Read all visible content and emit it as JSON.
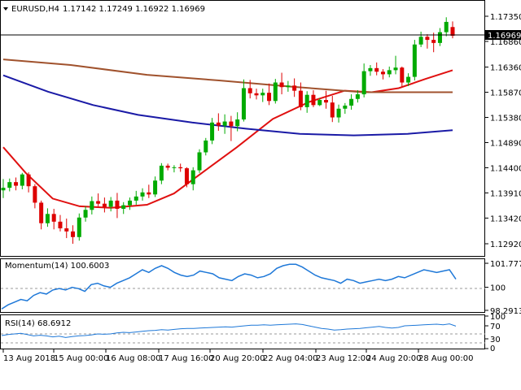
{
  "header": {
    "symbol_label": "EURUSD,H4",
    "ohlc": "1.17142 1.17249 1.16922 1.16969"
  },
  "current_price": "1.16969",
  "price_axis": [
    "1.17350",
    "1.16860",
    "1.16360",
    "1.15870",
    "1.15380",
    "1.14890",
    "1.14400",
    "1.13910",
    "1.13420",
    "1.12920"
  ],
  "momentum_panel": {
    "label": "Momentum(14) 100.6003",
    "axis": [
      "101.7776",
      "100",
      "98.2913"
    ]
  },
  "rsi_panel": {
    "label": "RSI(14) 68.6912",
    "axis": [
      "100",
      "70",
      "30",
      "0"
    ]
  },
  "time_axis": [
    "13 Aug 2018",
    "15 Aug 00:00",
    "16 Aug 08:00",
    "17 Aug 16:00",
    "20 Aug 20:00",
    "22 Aug 04:00",
    "23 Aug 12:00",
    "24 Aug 20:00",
    "28 Aug 00:00"
  ],
  "colors": {
    "bull": "#00aa00",
    "bear": "#dd0000",
    "sma_fast": "#e01010",
    "sma_mid": "#a0522d",
    "sma_slow": "#1a1aa6",
    "oscillator": "#1e78d8",
    "background": "#ffffff",
    "text": "#000000"
  },
  "chart_data": [
    {
      "type": "candlestick",
      "title": "EURUSD,H4",
      "ylim": [
        1.1292,
        1.1735
      ],
      "candles": [
        {
          "o": 1.1396,
          "h": 1.1418,
          "l": 1.1381,
          "c": 1.1401
        },
        {
          "o": 1.1401,
          "h": 1.1419,
          "l": 1.1394,
          "c": 1.1412
        },
        {
          "o": 1.1412,
          "h": 1.1421,
          "l": 1.1396,
          "c": 1.1405
        },
        {
          "o": 1.1405,
          "h": 1.143,
          "l": 1.1398,
          "c": 1.1427
        },
        {
          "o": 1.1427,
          "h": 1.1431,
          "l": 1.1392,
          "c": 1.1404
        },
        {
          "o": 1.1404,
          "h": 1.1408,
          "l": 1.1361,
          "c": 1.1372
        },
        {
          "o": 1.1372,
          "h": 1.1376,
          "l": 1.132,
          "c": 1.1332
        },
        {
          "o": 1.1332,
          "h": 1.1361,
          "l": 1.1325,
          "c": 1.135
        },
        {
          "o": 1.135,
          "h": 1.136,
          "l": 1.132,
          "c": 1.1335
        },
        {
          "o": 1.1335,
          "h": 1.1348,
          "l": 1.1316,
          "c": 1.1322
        },
        {
          "o": 1.1322,
          "h": 1.1341,
          "l": 1.1303,
          "c": 1.1316
        },
        {
          "o": 1.1316,
          "h": 1.1328,
          "l": 1.1292,
          "c": 1.1305
        },
        {
          "o": 1.1305,
          "h": 1.1351,
          "l": 1.1298,
          "c": 1.1343
        },
        {
          "o": 1.1343,
          "h": 1.1365,
          "l": 1.1335,
          "c": 1.1358
        },
        {
          "o": 1.1358,
          "h": 1.1384,
          "l": 1.1349,
          "c": 1.1375
        },
        {
          "o": 1.1375,
          "h": 1.139,
          "l": 1.1365,
          "c": 1.137
        },
        {
          "o": 1.137,
          "h": 1.1382,
          "l": 1.1353,
          "c": 1.1364
        },
        {
          "o": 1.1364,
          "h": 1.1383,
          "l": 1.1355,
          "c": 1.1376
        },
        {
          "o": 1.1376,
          "h": 1.1391,
          "l": 1.1342,
          "c": 1.136
        },
        {
          "o": 1.136,
          "h": 1.1373,
          "l": 1.135,
          "c": 1.1367
        },
        {
          "o": 1.1367,
          "h": 1.1382,
          "l": 1.1358,
          "c": 1.1376
        },
        {
          "o": 1.1376,
          "h": 1.1395,
          "l": 1.1368,
          "c": 1.1384
        },
        {
          "o": 1.1384,
          "h": 1.14,
          "l": 1.1376,
          "c": 1.1392
        },
        {
          "o": 1.1392,
          "h": 1.1407,
          "l": 1.1381,
          "c": 1.1388
        },
        {
          "o": 1.1388,
          "h": 1.1423,
          "l": 1.1383,
          "c": 1.1415
        },
        {
          "o": 1.1415,
          "h": 1.1449,
          "l": 1.1408,
          "c": 1.1444
        },
        {
          "o": 1.1444,
          "h": 1.1448,
          "l": 1.1435,
          "c": 1.144
        },
        {
          "o": 1.144,
          "h": 1.1445,
          "l": 1.1431,
          "c": 1.1441
        },
        {
          "o": 1.1441,
          "h": 1.1448,
          "l": 1.1432,
          "c": 1.1439
        },
        {
          "o": 1.1439,
          "h": 1.1441,
          "l": 1.1402,
          "c": 1.1408
        },
        {
          "o": 1.1408,
          "h": 1.1441,
          "l": 1.1396,
          "c": 1.1435
        },
        {
          "o": 1.1435,
          "h": 1.1476,
          "l": 1.143,
          "c": 1.147
        },
        {
          "o": 1.147,
          "h": 1.1498,
          "l": 1.1464,
          "c": 1.1493
        },
        {
          "o": 1.1493,
          "h": 1.1537,
          "l": 1.1486,
          "c": 1.1528
        },
        {
          "o": 1.1528,
          "h": 1.1546,
          "l": 1.1512,
          "c": 1.1522
        },
        {
          "o": 1.1522,
          "h": 1.1544,
          "l": 1.1506,
          "c": 1.153
        },
        {
          "o": 1.153,
          "h": 1.1541,
          "l": 1.1492,
          "c": 1.1521
        },
        {
          "o": 1.1521,
          "h": 1.1548,
          "l": 1.1511,
          "c": 1.1534
        },
        {
          "o": 1.1534,
          "h": 1.1612,
          "l": 1.153,
          "c": 1.1595
        },
        {
          "o": 1.1595,
          "h": 1.1611,
          "l": 1.1575,
          "c": 1.1585
        },
        {
          "o": 1.1585,
          "h": 1.1594,
          "l": 1.1573,
          "c": 1.1581
        },
        {
          "o": 1.1581,
          "h": 1.1594,
          "l": 1.1568,
          "c": 1.1586
        },
        {
          "o": 1.1586,
          "h": 1.1604,
          "l": 1.1562,
          "c": 1.157
        },
        {
          "o": 1.157,
          "h": 1.1613,
          "l": 1.1565,
          "c": 1.1606
        },
        {
          "o": 1.1606,
          "h": 1.1625,
          "l": 1.1583,
          "c": 1.1597
        },
        {
          "o": 1.1597,
          "h": 1.1609,
          "l": 1.1588,
          "c": 1.16
        },
        {
          "o": 1.16,
          "h": 1.1614,
          "l": 1.1578,
          "c": 1.159
        },
        {
          "o": 1.159,
          "h": 1.1606,
          "l": 1.1552,
          "c": 1.1558
        },
        {
          "o": 1.1558,
          "h": 1.1589,
          "l": 1.1547,
          "c": 1.1582
        },
        {
          "o": 1.1582,
          "h": 1.1591,
          "l": 1.1558,
          "c": 1.1562
        },
        {
          "o": 1.1562,
          "h": 1.1575,
          "l": 1.156,
          "c": 1.1572
        },
        {
          "o": 1.1572,
          "h": 1.159,
          "l": 1.1555,
          "c": 1.1567
        },
        {
          "o": 1.1567,
          "h": 1.158,
          "l": 1.1529,
          "c": 1.1538
        },
        {
          "o": 1.1538,
          "h": 1.1563,
          "l": 1.1528,
          "c": 1.1555
        },
        {
          "o": 1.1555,
          "h": 1.1566,
          "l": 1.1545,
          "c": 1.1561
        },
        {
          "o": 1.1561,
          "h": 1.1583,
          "l": 1.1553,
          "c": 1.1574
        },
        {
          "o": 1.1574,
          "h": 1.1591,
          "l": 1.1567,
          "c": 1.1583
        },
        {
          "o": 1.1583,
          "h": 1.1643,
          "l": 1.1577,
          "c": 1.1628
        },
        {
          "o": 1.1628,
          "h": 1.164,
          "l": 1.1619,
          "c": 1.1634
        },
        {
          "o": 1.1634,
          "h": 1.1645,
          "l": 1.162,
          "c": 1.1627
        },
        {
          "o": 1.1627,
          "h": 1.1632,
          "l": 1.1612,
          "c": 1.1622
        },
        {
          "o": 1.1622,
          "h": 1.1637,
          "l": 1.1616,
          "c": 1.163
        },
        {
          "o": 1.163,
          "h": 1.1658,
          "l": 1.1622,
          "c": 1.1635
        },
        {
          "o": 1.1635,
          "h": 1.1637,
          "l": 1.1598,
          "c": 1.1606
        },
        {
          "o": 1.1606,
          "h": 1.1624,
          "l": 1.1599,
          "c": 1.1617
        },
        {
          "o": 1.1617,
          "h": 1.1689,
          "l": 1.161,
          "c": 1.168
        },
        {
          "o": 1.168,
          "h": 1.1705,
          "l": 1.1675,
          "c": 1.1695
        },
        {
          "o": 1.1695,
          "h": 1.17,
          "l": 1.1672,
          "c": 1.1689
        },
        {
          "o": 1.1689,
          "h": 1.1703,
          "l": 1.1665,
          "c": 1.1683
        },
        {
          "o": 1.1683,
          "h": 1.1712,
          "l": 1.1677,
          "c": 1.1704
        },
        {
          "o": 1.1704,
          "h": 1.1733,
          "l": 1.1696,
          "c": 1.1724
        },
        {
          "o": 1.1714,
          "h": 1.1725,
          "l": 1.1692,
          "c": 1.1697
        }
      ],
      "moving_averages": [
        {
          "color": "#e01010",
          "values": [
            [
              0,
              1.148
            ],
            [
              0.05,
              1.143
            ],
            [
              0.11,
              1.138
            ],
            [
              0.17,
              1.1365
            ],
            [
              0.24,
              1.1362
            ],
            [
              0.32,
              1.1368
            ],
            [
              0.38,
              1.139
            ],
            [
              0.45,
              1.1435
            ],
            [
              0.52,
              1.148
            ],
            [
              0.6,
              1.1535
            ],
            [
              0.68,
              1.1568
            ],
            [
              0.76,
              1.159
            ],
            [
              0.82,
              1.1587
            ],
            [
              0.88,
              1.1595
            ],
            [
              0.94,
              1.1613
            ],
            [
              1.0,
              1.163
            ]
          ]
        },
        {
          "color": "#a0522d",
          "values": [
            [
              0,
              1.1651
            ],
            [
              0.15,
              1.164
            ],
            [
              0.32,
              1.1621
            ],
            [
              0.48,
              1.161
            ],
            [
              0.64,
              1.1598
            ],
            [
              0.8,
              1.1587
            ],
            [
              1.0,
              1.1587
            ]
          ]
        },
        {
          "color": "#1a1aa6",
          "values": [
            [
              0,
              1.162
            ],
            [
              0.1,
              1.1588
            ],
            [
              0.2,
              1.1562
            ],
            [
              0.3,
              1.1543
            ],
            [
              0.42,
              1.1528
            ],
            [
              0.54,
              1.1516
            ],
            [
              0.66,
              1.1506
            ],
            [
              0.78,
              1.1503
            ],
            [
              0.9,
              1.1506
            ],
            [
              1.0,
              1.1513
            ]
          ]
        }
      ]
    },
    {
      "type": "line",
      "title": "Momentum(14) 100.6003",
      "ylim": [
        98.29,
        101.78
      ],
      "values": [
        98.4,
        98.7,
        98.9,
        99.1,
        99.0,
        99.4,
        99.6,
        99.5,
        99.8,
        99.9,
        99.8,
        100.0,
        99.9,
        99.7,
        100.2,
        100.3,
        100.1,
        100.0,
        100.3,
        100.5,
        100.7,
        101.0,
        101.3,
        101.1,
        101.4,
        101.6,
        101.4,
        101.1,
        100.9,
        100.8,
        100.9,
        101.2,
        101.1,
        101.0,
        100.7,
        100.6,
        100.5,
        100.8,
        101.0,
        100.9,
        100.7,
        100.8,
        101.0,
        101.4,
        101.6,
        101.7,
        101.7,
        101.5,
        101.2,
        100.9,
        100.7,
        100.6,
        100.5,
        100.3,
        100.6,
        100.5,
        100.3,
        100.4,
        100.5,
        100.6,
        100.5,
        100.6,
        100.8,
        100.7,
        100.9,
        101.1,
        101.3,
        101.2,
        101.1,
        101.2,
        101.3,
        100.6
      ]
    },
    {
      "type": "line",
      "title": "RSI(14) 68.6912",
      "ylim": [
        0,
        100
      ],
      "values": [
        40,
        43,
        45,
        47,
        43,
        39,
        41,
        39,
        36,
        38,
        34,
        37,
        39,
        40,
        42,
        45,
        44,
        45,
        48,
        50,
        49,
        51,
        53,
        55,
        56,
        58,
        57,
        59,
        61,
        62,
        62,
        63,
        64,
        65,
        66,
        67,
        66,
        68,
        70,
        72,
        72,
        73,
        72,
        73,
        74,
        75,
        76,
        74,
        70,
        66,
        62,
        60,
        57,
        58,
        60,
        61,
        62,
        64,
        66,
        68,
        65,
        63,
        65,
        70,
        71,
        72,
        73,
        74,
        75,
        73,
        76,
        69
      ]
    }
  ]
}
